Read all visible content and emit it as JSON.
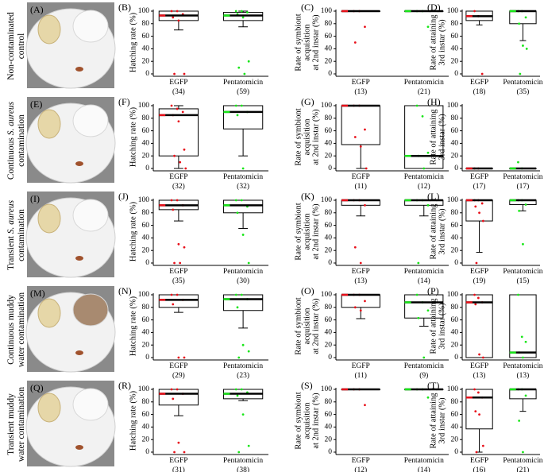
{
  "rows": [
    {
      "photo_label": "(A)",
      "label_lines": [
        [
          {
            "text": "Non-contaminated"
          }
        ],
        [
          {
            "text": "control"
          }
        ]
      ]
    },
    {
      "photo_label": "(E)",
      "label_lines": [
        [
          {
            "text": "Continuous "
          },
          {
            "text": "S. aureus",
            "style": "italic"
          }
        ],
        [
          {
            "text": "contamination"
          }
        ]
      ]
    },
    {
      "photo_label": "(I)",
      "label_lines": [
        [
          {
            "text": "Transient "
          },
          {
            "text": "S. aureus",
            "style": "italic"
          }
        ],
        [
          {
            "text": "contamination"
          }
        ]
      ]
    },
    {
      "photo_label": "(M)",
      "label_lines": [
        [
          {
            "text": "Continuous muddy"
          }
        ],
        [
          {
            "text": "water contamination"
          }
        ]
      ]
    },
    {
      "photo_label": "(Q)",
      "label_lines": [
        [
          {
            "text": "Transient muddy"
          }
        ],
        [
          {
            "text": "water contamination"
          }
        ]
      ]
    }
  ],
  "chart_data": [
    {
      "type": "box",
      "label": "(B)",
      "ylabel": [
        "Hatching rate (%)"
      ],
      "categories": [
        "EGFP",
        "Pentatomicin"
      ],
      "n_labels": [
        "(34)",
        "(59)"
      ],
      "ylim": [
        0,
        100
      ],
      "yticks": [
        0,
        20,
        40,
        60,
        80,
        100
      ],
      "boxes": [
        {
          "color": "#e8101a",
          "median": 93,
          "q1": 85,
          "q3": 100,
          "low": 70,
          "high": 100,
          "points": [
            100,
            100,
            95,
            90,
            85,
            0,
            0
          ]
        },
        {
          "color": "#19e619",
          "median": 93,
          "q1": 85,
          "q3": 98,
          "low": 75,
          "high": 100,
          "points": [
            100,
            100,
            98,
            95,
            90,
            20,
            10,
            0
          ]
        }
      ]
    },
    {
      "type": "box",
      "label": "(C)",
      "ylabel": [
        "Rate of symbiont",
        "acquisition",
        "at 2nd instar (%)"
      ],
      "categories": [
        "EGFP",
        "Pentatomicin"
      ],
      "n_labels": [
        "(13)",
        "(21)"
      ],
      "ylim": [
        0,
        100
      ],
      "yticks": [
        0,
        20,
        40,
        60,
        80,
        100
      ],
      "boxes": [
        {
          "color": "#e8101a",
          "median": 100,
          "q1": 100,
          "q3": 100,
          "low": 100,
          "high": 100,
          "points": [
            100,
            100,
            75,
            50
          ]
        },
        {
          "color": "#19e619",
          "median": 100,
          "q1": 100,
          "q3": 100,
          "low": 100,
          "high": 100,
          "points": [
            100,
            100,
            75
          ]
        }
      ]
    },
    {
      "type": "box",
      "label": "(D)",
      "ylabel": [
        "Rate of attaining",
        "3rd instar (%)"
      ],
      "categories": [
        "EGFP",
        "Pentatomicin"
      ],
      "n_labels": [
        "(18)",
        "(35)"
      ],
      "ylim": [
        0,
        100
      ],
      "yticks": [
        0,
        20,
        40,
        60,
        80,
        100
      ],
      "boxes": [
        {
          "color": "#e8101a",
          "median": 92,
          "q1": 85,
          "q3": 100,
          "low": 78,
          "high": 100,
          "points": [
            100,
            92,
            0
          ]
        },
        {
          "color": "#19e619",
          "median": 100,
          "q1": 80,
          "q3": 100,
          "low": 53,
          "high": 100,
          "points": [
            100,
            100,
            90,
            80,
            45,
            40,
            0
          ]
        }
      ]
    },
    {
      "type": "box",
      "label": "(F)",
      "ylabel": [
        "Hatching rate (%)"
      ],
      "categories": [
        "EGFP",
        "Pentatomicin"
      ],
      "n_labels": [
        "(32)",
        "(32)"
      ],
      "ylim": [
        0,
        100
      ],
      "yticks": [
        0,
        20,
        40,
        60,
        80,
        100
      ],
      "boxes": [
        {
          "color": "#e8101a",
          "median": 85,
          "q1": 20,
          "q3": 95,
          "low": 0,
          "high": 100,
          "points": [
            100,
            95,
            90,
            85,
            75,
            30,
            20,
            10,
            0
          ]
        },
        {
          "color": "#19e619",
          "median": 90,
          "q1": 63,
          "q3": 100,
          "low": 20,
          "high": 100,
          "points": [
            100,
            100,
            90,
            85,
            0
          ]
        }
      ]
    },
    {
      "type": "box",
      "label": "(G)",
      "ylabel": [
        "Rate of symbiont",
        "acquisition",
        "at 2nd instar (%)"
      ],
      "categories": [
        "EGFP",
        "Pentatomicin"
      ],
      "n_labels": [
        "(11)",
        "(12)"
      ],
      "ylim": [
        0,
        100
      ],
      "yticks": [
        0,
        20,
        40,
        60,
        80,
        100
      ],
      "boxes": [
        {
          "color": "#e8101a",
          "median": 100,
          "q1": 38,
          "q3": 100,
          "low": 0,
          "high": 100,
          "points": [
            100,
            100,
            62,
            50,
            35,
            0
          ]
        },
        {
          "color": "#19e619",
          "median": 20,
          "q1": 0,
          "q3": 100,
          "low": 0,
          "high": 100,
          "points": [
            100,
            83,
            25,
            20,
            0
          ]
        }
      ]
    },
    {
      "type": "box",
      "label": "(H)",
      "ylabel": [
        "Rate of attaining",
        "3rd instar (%)"
      ],
      "categories": [
        "EGFP",
        "Pentatomicin"
      ],
      "n_labels": [
        "(17)",
        "(17)"
      ],
      "ylim": [
        0,
        100
      ],
      "yticks": [
        0,
        20,
        40,
        60,
        80,
        100
      ],
      "boxes": [
        {
          "color": "#e8101a",
          "median": 0,
          "q1": 0,
          "q3": 0,
          "low": 0,
          "high": 0,
          "points": [
            0,
            0
          ]
        },
        {
          "color": "#19e619",
          "median": 0,
          "q1": 0,
          "q3": 0,
          "low": 0,
          "high": 0,
          "points": [
            10,
            0
          ]
        }
      ]
    },
    {
      "type": "box",
      "label": "(J)",
      "ylabel": [
        "Hatching rate (%)"
      ],
      "categories": [
        "EGFP",
        "Pentatomicin"
      ],
      "n_labels": [
        "(35)",
        "(30)"
      ],
      "ylim": [
        0,
        100
      ],
      "yticks": [
        0,
        20,
        40,
        60,
        80,
        100
      ],
      "boxes": [
        {
          "color": "#e8101a",
          "median": 92,
          "q1": 85,
          "q3": 100,
          "low": 67,
          "high": 100,
          "points": [
            100,
            100,
            92,
            85,
            30,
            25,
            0,
            0
          ]
        },
        {
          "color": "#19e619",
          "median": 92,
          "q1": 80,
          "q3": 100,
          "low": 55,
          "high": 100,
          "points": [
            100,
            100,
            90,
            80,
            45,
            0
          ]
        }
      ]
    },
    {
      "type": "box",
      "label": "(K)",
      "ylabel": [
        "Rate of symbiont",
        "acquisition",
        "at 2nd instar (%)"
      ],
      "categories": [
        "EGFP",
        "Pentatomicin"
      ],
      "n_labels": [
        "(13)",
        "(14)"
      ],
      "ylim": [
        0,
        100
      ],
      "yticks": [
        0,
        20,
        40,
        60,
        80,
        100
      ],
      "boxes": [
        {
          "color": "#e8101a",
          "median": 100,
          "q1": 92,
          "q3": 100,
          "low": 75,
          "high": 100,
          "points": [
            100,
            100,
            92,
            25,
            0
          ]
        },
        {
          "color": "#19e619",
          "median": 100,
          "q1": 92,
          "q3": 100,
          "low": 75,
          "high": 100,
          "points": [
            100,
            100,
            92,
            0
          ]
        }
      ]
    },
    {
      "type": "box",
      "label": "(L)",
      "ylabel": [
        "Rate of attaining",
        "3rd instar (%)"
      ],
      "categories": [
        "EGFP",
        "Pentatomicin"
      ],
      "n_labels": [
        "(19)",
        "(15)"
      ],
      "ylim": [
        0,
        100
      ],
      "yticks": [
        0,
        20,
        40,
        60,
        80,
        100
      ],
      "boxes": [
        {
          "color": "#e8101a",
          "median": 100,
          "q1": 67,
          "q3": 100,
          "low": 17,
          "high": 100,
          "points": [
            100,
            100,
            95,
            90,
            80,
            67,
            0
          ]
        },
        {
          "color": "#19e619",
          "median": 100,
          "q1": 93,
          "q3": 100,
          "low": 83,
          "high": 100,
          "points": [
            100,
            100,
            93,
            83,
            30
          ]
        }
      ]
    },
    {
      "type": "box",
      "label": "(N)",
      "ylabel": [
        "Hatching rate (%)"
      ],
      "categories": [
        "EGFP",
        "Pentatomicin"
      ],
      "n_labels": [
        "(29)",
        "(23)"
      ],
      "ylim": [
        0,
        100
      ],
      "yticks": [
        0,
        20,
        40,
        60,
        80,
        100
      ],
      "boxes": [
        {
          "color": "#e8101a",
          "median": 92,
          "q1": 80,
          "q3": 100,
          "low": 72,
          "high": 100,
          "points": [
            100,
            100,
            92,
            85,
            0,
            0
          ]
        },
        {
          "color": "#19e619",
          "median": 93,
          "q1": 75,
          "q3": 100,
          "low": 47,
          "high": 100,
          "points": [
            100,
            100,
            93,
            80,
            20,
            10,
            0
          ]
        }
      ]
    },
    {
      "type": "box",
      "label": "(O)",
      "ylabel": [
        "Rate of symbiont",
        "acquisition",
        "at 2nd instar (%)"
      ],
      "categories": [
        "EGFP",
        "Pentatomicin"
      ],
      "n_labels": [
        "(11)",
        "(9)"
      ],
      "ylim": [
        0,
        100
      ],
      "yticks": [
        0,
        20,
        40,
        60,
        80,
        100
      ],
      "boxes": [
        {
          "color": "#e8101a",
          "median": 100,
          "q1": 80,
          "q3": 100,
          "low": 62,
          "high": 100,
          "points": [
            100,
            100,
            90,
            80,
            75
          ]
        },
        {
          "color": "#19e619",
          "median": 88,
          "q1": 63,
          "q3": 100,
          "low": 50,
          "high": 100,
          "points": [
            100,
            88,
            75,
            63,
            0
          ]
        }
      ]
    },
    {
      "type": "box",
      "label": "(P)",
      "ylabel": [
        "Rate of attaining",
        "3rd instar (%)"
      ],
      "categories": [
        "EGFP",
        "Pentatomicin"
      ],
      "n_labels": [
        "(13)",
        "(13)"
      ],
      "ylim": [
        0,
        100
      ],
      "yticks": [
        0,
        20,
        40,
        60,
        80,
        100
      ],
      "boxes": [
        {
          "color": "#e8101a",
          "median": 88,
          "q1": 0,
          "q3": 100,
          "low": 0,
          "high": 100,
          "points": [
            100,
            95,
            88,
            85,
            5,
            0
          ]
        },
        {
          "color": "#19e619",
          "median": 8,
          "q1": 0,
          "q3": 100,
          "low": 0,
          "high": 100,
          "points": [
            100,
            33,
            25,
            8,
            0
          ]
        }
      ]
    },
    {
      "type": "box",
      "label": "(R)",
      "ylabel": [
        "Hatching rate (%)"
      ],
      "categories": [
        "EGFP",
        "Pentatomicin"
      ],
      "n_labels": [
        "(31)",
        "(38)"
      ],
      "ylim": [
        0,
        100
      ],
      "yticks": [
        0,
        20,
        40,
        60,
        80,
        100
      ],
      "boxes": [
        {
          "color": "#e8101a",
          "median": 93,
          "q1": 75,
          "q3": 100,
          "low": 58,
          "high": 100,
          "points": [
            100,
            100,
            93,
            85,
            15,
            0,
            0
          ]
        },
        {
          "color": "#19e619",
          "median": 93,
          "q1": 85,
          "q3": 100,
          "low": 82,
          "high": 100,
          "points": [
            100,
            100,
            95,
            90,
            60,
            10,
            0
          ]
        }
      ]
    },
    {
      "type": "box",
      "label": "(S)",
      "ylabel": [
        "Rate of symbiont",
        "acquisition",
        "at 2nd instar (%)"
      ],
      "categories": [
        "EGFP",
        "Pentatomicin"
      ],
      "n_labels": [
        "(12)",
        "(14)"
      ],
      "ylim": [
        0,
        100
      ],
      "yticks": [
        0,
        20,
        40,
        60,
        80,
        100
      ],
      "boxes": [
        {
          "color": "#e8101a",
          "median": 100,
          "q1": 100,
          "q3": 100,
          "low": 100,
          "high": 100,
          "points": [
            100,
            100,
            75
          ]
        },
        {
          "color": "#19e619",
          "median": 100,
          "q1": 100,
          "q3": 100,
          "low": 100,
          "high": 100,
          "points": [
            100,
            100,
            87
          ]
        }
      ]
    },
    {
      "type": "box",
      "label": "(T)",
      "ylabel": [
        "Rate of attaining",
        "3rd instar (%)"
      ],
      "categories": [
        "EGFP",
        "Pentatomicin"
      ],
      "n_labels": [
        "(16)",
        "(21)"
      ],
      "ylim": [
        0,
        100
      ],
      "yticks": [
        0,
        20,
        40,
        60,
        80,
        100
      ],
      "boxes": [
        {
          "color": "#e8101a",
          "median": 87,
          "q1": 37,
          "q3": 100,
          "low": 0,
          "high": 100,
          "points": [
            100,
            95,
            87,
            65,
            60,
            10,
            0
          ]
        },
        {
          "color": "#19e619",
          "median": 100,
          "q1": 85,
          "q3": 100,
          "low": 65,
          "high": 100,
          "points": [
            100,
            100,
            90,
            50,
            0
          ]
        }
      ]
    }
  ]
}
